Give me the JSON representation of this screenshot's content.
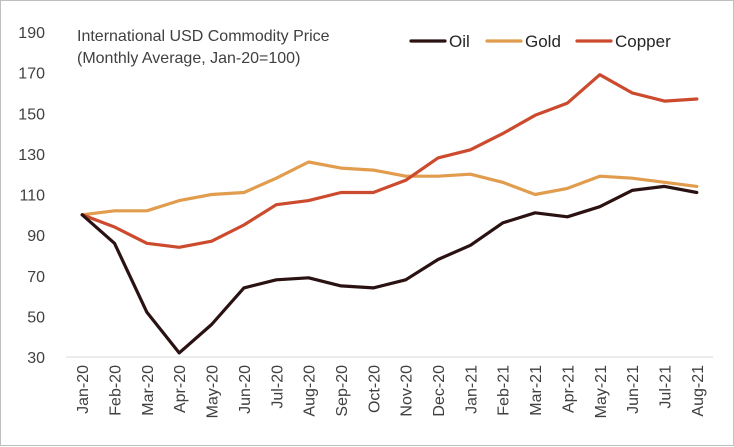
{
  "chart_data": {
    "type": "line",
    "title_lines": [
      "International USD Commodity Price",
      "(Monthly Average, Jan-20=100)"
    ],
    "categories": [
      "Jan-20",
      "Feb-20",
      "Mar-20",
      "Apr-20",
      "May-20",
      "Jun-20",
      "Jul-20",
      "Aug-20",
      "Sep-20",
      "Oct-20",
      "Nov-20",
      "Dec-20",
      "Jan-21",
      "Feb-21",
      "Mar-21",
      "Apr-21",
      "May-21",
      "Jun-21",
      "Jul-21",
      "Aug-21"
    ],
    "y_ticks": [
      "190",
      "170",
      "150",
      "130",
      "110",
      "90",
      "70",
      "50",
      "30"
    ],
    "ylim": [
      30,
      190
    ],
    "y_major": 20,
    "grid": false,
    "legend_position": "top-right",
    "series": [
      {
        "name": "Oil",
        "color": "#2b1212",
        "values": [
          100,
          86,
          52,
          32,
          46,
          64,
          68,
          69,
          65,
          64,
          68,
          78,
          85,
          96,
          101,
          99,
          104,
          112,
          114,
          111
        ]
      },
      {
        "name": "Gold",
        "color": "#e19c4e",
        "values": [
          100,
          102,
          102,
          107,
          110,
          111,
          118,
          126,
          123,
          122,
          119,
          119,
          120,
          116,
          110,
          113,
          119,
          118,
          116,
          114
        ]
      },
      {
        "name": "Copper",
        "color": "#cc4a2d",
        "values": [
          100,
          94,
          86,
          84,
          87,
          95,
          105,
          107,
          111,
          111,
          117,
          128,
          132,
          140,
          149,
          155,
          169,
          160,
          156,
          157
        ]
      }
    ]
  }
}
